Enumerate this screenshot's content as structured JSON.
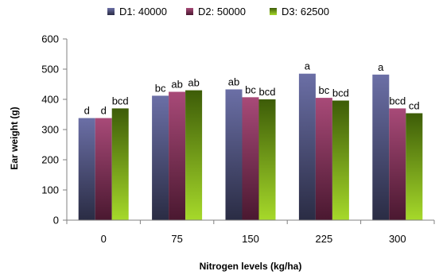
{
  "chart_data": {
    "type": "bar",
    "title": "",
    "xlabel": "Nitrogen levels (kg/ha)",
    "ylabel": "Ear weight (g)",
    "ylim": [
      0,
      600
    ],
    "yticks": [
      0,
      100,
      200,
      300,
      400,
      500,
      600
    ],
    "categories": [
      "0",
      "75",
      "150",
      "225",
      "300"
    ],
    "legend_position": "top",
    "grid": false,
    "series": [
      {
        "name": "D1: 40000",
        "values": [
          338,
          412,
          433,
          485,
          482
        ],
        "labels": [
          "d",
          "bc",
          "ab",
          "a",
          "a"
        ],
        "color_top": "#6b6fa6",
        "color_bottom": "#2a2c44"
      },
      {
        "name": "D2: 50000",
        "values": [
          338,
          425,
          407,
          405,
          370
        ],
        "labels": [
          "d",
          "ab",
          "bc",
          "bc",
          "bcd"
        ],
        "color_top": "#a84a78",
        "color_bottom": "#4a1830"
      },
      {
        "name": "D3: 62500",
        "values": [
          370,
          430,
          400,
          396,
          354
        ],
        "labels": [
          "bcd",
          "ab",
          "bcd",
          "bcd",
          "cd"
        ],
        "color_top": "#3d5c08",
        "color_bottom": "#a6d92a"
      }
    ]
  }
}
